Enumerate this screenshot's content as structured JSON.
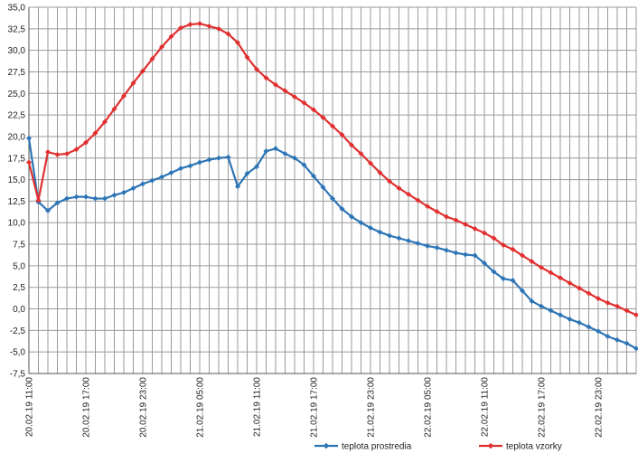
{
  "chart_data": {
    "type": "line",
    "title": "",
    "xlabel": "",
    "ylabel": "",
    "ylim": [
      -7.5,
      35.0
    ],
    "ytick_step": 2.5,
    "yticks": [
      "35,0",
      "32,5",
      "30,0",
      "27,5",
      "25,0",
      "22,5",
      "20,0",
      "17,5",
      "15,0",
      "12,5",
      "10,0",
      "7,5",
      "5,0",
      "2,5",
      "0,0",
      "-2,5",
      "-5,0",
      "-7,5"
    ],
    "x_count": 65,
    "x_step_hours": 1,
    "xtick_labels": [
      {
        "index": 0,
        "label": "20.02.19 11:00"
      },
      {
        "index": 6,
        "label": "20.02.19 17:00"
      },
      {
        "index": 12,
        "label": "20.02.19 23:00"
      },
      {
        "index": 18,
        "label": "21.02.19 05:00"
      },
      {
        "index": 24,
        "label": "21.02.19 11:00"
      },
      {
        "index": 30,
        "label": "21.02.19 17:00"
      },
      {
        "index": 36,
        "label": "21.02.19 23:00"
      },
      {
        "index": 42,
        "label": "22.02.19 05:00"
      },
      {
        "index": 48,
        "label": "22.02.19 11:00"
      },
      {
        "index": 54,
        "label": "22.02.19 17:00"
      },
      {
        "index": 60,
        "label": "22.02.19 23:00"
      }
    ],
    "grid": true,
    "legend_position": "bottom",
    "series": [
      {
        "name": "teplota prostredia",
        "color": "#2e75b6",
        "values": [
          19.8,
          12.4,
          11.4,
          12.3,
          12.8,
          13.0,
          13.0,
          12.8,
          12.8,
          13.2,
          13.5,
          14.0,
          14.5,
          14.9,
          15.3,
          15.8,
          16.3,
          16.6,
          17.0,
          17.3,
          17.5,
          17.6,
          14.2,
          15.7,
          16.5,
          18.3,
          18.6,
          18.0,
          17.5,
          16.7,
          15.4,
          14.1,
          12.8,
          11.6,
          10.7,
          10.0,
          9.4,
          8.9,
          8.5,
          8.2,
          7.9,
          7.6,
          7.3,
          7.1,
          6.8,
          6.5,
          6.3,
          6.2,
          5.3,
          4.3,
          3.5,
          3.3,
          2.1,
          0.9,
          0.3,
          -0.2,
          -0.7,
          -1.2,
          -1.6,
          -2.1,
          -2.6,
          -3.2,
          -3.6,
          -4.0,
          -4.6
        ]
      },
      {
        "name": "teplota vzorky",
        "color": "#e03030",
        "values": [
          17.0,
          12.6,
          18.2,
          17.9,
          18.0,
          18.5,
          19.3,
          20.4,
          21.7,
          23.2,
          24.7,
          26.2,
          27.6,
          29.0,
          30.4,
          31.6,
          32.6,
          33.0,
          33.1,
          32.8,
          32.5,
          31.9,
          30.9,
          29.2,
          27.8,
          26.8,
          26.0,
          25.3,
          24.6,
          23.9,
          23.1,
          22.2,
          21.2,
          20.2,
          19.0,
          18.0,
          16.9,
          15.8,
          14.8,
          14.0,
          13.3,
          12.6,
          11.9,
          11.3,
          10.7,
          10.3,
          9.8,
          9.3,
          8.8,
          8.2,
          7.4,
          6.9,
          6.2,
          5.5,
          4.8,
          4.2,
          3.6,
          3.0,
          2.4,
          1.8,
          1.2,
          0.7,
          0.3,
          -0.2,
          -0.7
        ]
      }
    ]
  }
}
